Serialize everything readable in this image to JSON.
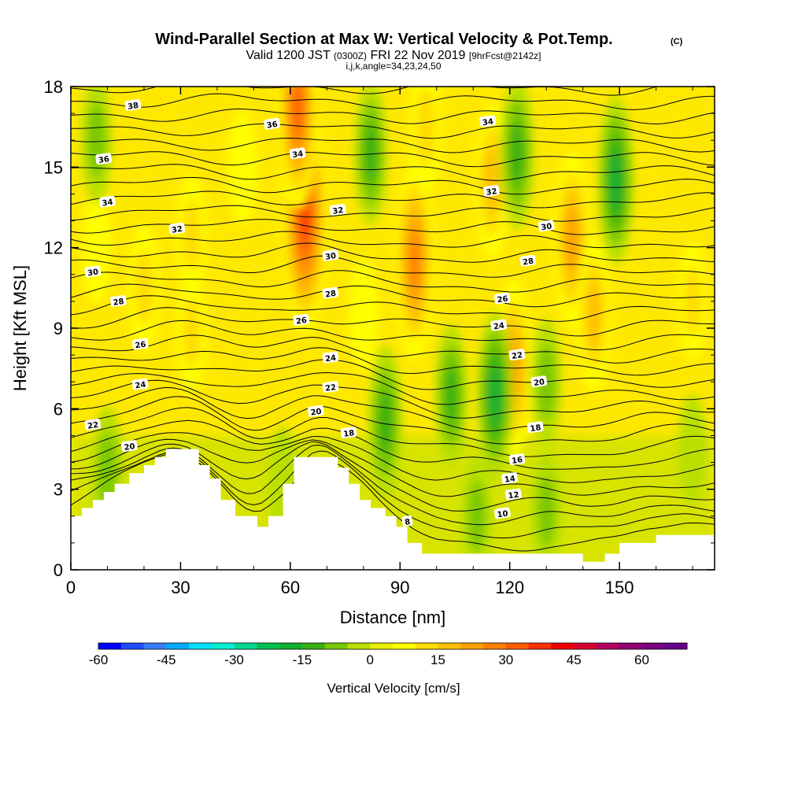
{
  "title": {
    "line1": "Wind-Parallel Section at Max W: Vertical Velocity & Pot.Temp.",
    "copyright": "(C)",
    "line2_a": "Valid 1200 JST",
    "line2_b": "(0300Z)",
    "line2_c": "FRI 22 Nov 2019",
    "line2_d": "[9hrFcst@2142z]",
    "line3": "i,j,k,angle=34,23,24,50"
  },
  "chart_data": {
    "type": "heatmap",
    "xlabel": "Distance [nm]",
    "ylabel": "Height [Kft MSL]",
    "xlim": [
      0,
      176
    ],
    "ylim": [
      0,
      18
    ],
    "x_ticks": [
      0,
      30,
      60,
      90,
      120,
      150
    ],
    "y_ticks": [
      0,
      3,
      6,
      9,
      12,
      15,
      18
    ],
    "field": "Vertical Velocity [cm/s]",
    "contour_field": "Potential Temperature",
    "colorbar": {
      "label": "Vertical Velocity [cm/s]",
      "min": -60,
      "max": 70,
      "step": 5,
      "tick_values": [
        -60,
        -45,
        -30,
        -15,
        0,
        15,
        30,
        45,
        60
      ],
      "tick_labels": [
        "-60",
        "-45",
        "-30",
        "-15",
        "0",
        "15",
        "30",
        "45",
        "60"
      ],
      "colors": [
        "#0000ff",
        "#1e4cff",
        "#3a7eff",
        "#00aaff",
        "#00e0ff",
        "#00f0d0",
        "#00d890",
        "#00c050",
        "#10b030",
        "#38b010",
        "#78c800",
        "#b8e000",
        "#e8f000",
        "#ffff00",
        "#ffdc00",
        "#ffc000",
        "#ffa000",
        "#ff8000",
        "#ff5c00",
        "#ff3000",
        "#f00000",
        "#d80030",
        "#b40060",
        "#900070",
        "#780080",
        "#660088"
      ]
    },
    "terrain": [
      [
        0,
        2.0
      ],
      [
        3,
        2.0
      ],
      [
        3,
        2.3
      ],
      [
        6,
        2.3
      ],
      [
        6,
        2.6
      ],
      [
        9,
        2.6
      ],
      [
        9,
        2.9
      ],
      [
        12,
        2.9
      ],
      [
        12,
        3.2
      ],
      [
        16,
        3.2
      ],
      [
        16,
        3.6
      ],
      [
        20,
        3.6
      ],
      [
        20,
        3.9
      ],
      [
        23,
        3.9
      ],
      [
        23,
        4.2
      ],
      [
        26,
        4.2
      ],
      [
        26,
        4.5
      ],
      [
        35,
        4.5
      ],
      [
        35,
        3.9
      ],
      [
        38,
        3.9
      ],
      [
        38,
        3.4
      ],
      [
        41,
        3.4
      ],
      [
        41,
        2.6
      ],
      [
        45,
        2.6
      ],
      [
        45,
        2.0
      ],
      [
        51,
        2.0
      ],
      [
        51,
        1.6
      ],
      [
        54,
        1.6
      ],
      [
        54,
        2.0
      ],
      [
        58,
        2.0
      ],
      [
        58,
        3.2
      ],
      [
        61,
        3.2
      ],
      [
        61,
        4.2
      ],
      [
        73,
        4.2
      ],
      [
        73,
        3.8
      ],
      [
        76,
        3.8
      ],
      [
        76,
        3.2
      ],
      [
        79,
        3.2
      ],
      [
        79,
        2.6
      ],
      [
        82,
        2.6
      ],
      [
        82,
        2.3
      ],
      [
        86,
        2.3
      ],
      [
        86,
        2.0
      ],
      [
        89,
        2.0
      ],
      [
        89,
        1.6
      ],
      [
        92,
        1.6
      ],
      [
        92,
        1.0
      ],
      [
        96,
        1.0
      ],
      [
        96,
        0.6
      ],
      [
        140,
        0.6
      ],
      [
        140,
        0.3
      ],
      [
        146,
        0.3
      ],
      [
        146,
        0.6
      ],
      [
        150,
        0.6
      ],
      [
        150,
        1.0
      ],
      [
        160,
        1.0
      ],
      [
        160,
        1.3
      ],
      [
        176,
        1.3
      ]
    ],
    "updraft_cells": [
      {
        "x": 64,
        "y": 13.2,
        "value": 37
      },
      {
        "x": 62,
        "y": 17.2,
        "value": 28
      },
      {
        "x": 94,
        "y": 11.5,
        "value": 27
      },
      {
        "x": 97,
        "y": 16.5,
        "value": 12
      },
      {
        "x": 115,
        "y": 14.5,
        "value": 17
      },
      {
        "x": 121,
        "y": 7.5,
        "value": 22
      },
      {
        "x": 137,
        "y": 12.3,
        "value": 22
      },
      {
        "x": 143,
        "y": 9.5,
        "value": 17
      },
      {
        "x": 33,
        "y": 12.5,
        "value": 8
      },
      {
        "x": 20,
        "y": 10.5,
        "value": 10
      },
      {
        "x": 7,
        "y": 12.0,
        "value": 6
      },
      {
        "x": 170,
        "y": 10.0,
        "value": 8
      },
      {
        "x": 47,
        "y": 15.0,
        "value": 7
      },
      {
        "x": 33,
        "y": 8.8,
        "value": 8
      },
      {
        "x": 80,
        "y": 9.5,
        "value": 7
      }
    ],
    "downdraft_cells": [
      {
        "x": 82,
        "y": 15.5,
        "value": -14
      },
      {
        "x": 7,
        "y": 16.0,
        "value": -10
      },
      {
        "x": 122,
        "y": 15.5,
        "value": -16
      },
      {
        "x": 149,
        "y": 14.5,
        "value": -20
      },
      {
        "x": 116,
        "y": 6.5,
        "value": -20
      },
      {
        "x": 104,
        "y": 6.5,
        "value": -14
      },
      {
        "x": 86,
        "y": 5.5,
        "value": -16
      },
      {
        "x": 10,
        "y": 3.6,
        "value": -12
      },
      {
        "x": 130,
        "y": 7.0,
        "value": -10
      },
      {
        "x": 111,
        "y": 2.0,
        "value": -8
      },
      {
        "x": 130,
        "y": 2.2,
        "value": -8
      },
      {
        "x": 170,
        "y": 4.5,
        "value": -6
      },
      {
        "x": 58,
        "y": 3.3,
        "value": -6
      }
    ],
    "contour_labels": [
      {
        "x": 17,
        "y": 17.3,
        "text": "38"
      },
      {
        "x": 55,
        "y": 16.6,
        "text": "36"
      },
      {
        "x": 9,
        "y": 15.3,
        "text": "36"
      },
      {
        "x": 62,
        "y": 15.5,
        "text": "34"
      },
      {
        "x": 114,
        "y": 16.7,
        "text": "34"
      },
      {
        "x": 10,
        "y": 13.7,
        "text": "34"
      },
      {
        "x": 29,
        "y": 12.7,
        "text": "32"
      },
      {
        "x": 73,
        "y": 13.4,
        "text": "32"
      },
      {
        "x": 115,
        "y": 14.1,
        "text": "32"
      },
      {
        "x": 130,
        "y": 12.8,
        "text": "30"
      },
      {
        "x": 6,
        "y": 11.1,
        "text": "30"
      },
      {
        "x": 71,
        "y": 11.7,
        "text": "30"
      },
      {
        "x": 125,
        "y": 11.5,
        "text": "28"
      },
      {
        "x": 13,
        "y": 10.0,
        "text": "28"
      },
      {
        "x": 71,
        "y": 10.3,
        "text": "28"
      },
      {
        "x": 118,
        "y": 10.1,
        "text": "26"
      },
      {
        "x": 19,
        "y": 8.4,
        "text": "26"
      },
      {
        "x": 63,
        "y": 9.3,
        "text": "26"
      },
      {
        "x": 117,
        "y": 9.1,
        "text": "24"
      },
      {
        "x": 19,
        "y": 6.9,
        "text": "24"
      },
      {
        "x": 71,
        "y": 7.9,
        "text": "24"
      },
      {
        "x": 122,
        "y": 8.0,
        "text": "22"
      },
      {
        "x": 6,
        "y": 5.4,
        "text": "22"
      },
      {
        "x": 71,
        "y": 6.8,
        "text": "22"
      },
      {
        "x": 128,
        "y": 7.0,
        "text": "20"
      },
      {
        "x": 16,
        "y": 4.6,
        "text": "20"
      },
      {
        "x": 67,
        "y": 5.9,
        "text": "20"
      },
      {
        "x": 127,
        "y": 5.3,
        "text": "18"
      },
      {
        "x": 76,
        "y": 5.1,
        "text": "18"
      },
      {
        "x": 122,
        "y": 4.1,
        "text": "16"
      },
      {
        "x": 120,
        "y": 3.4,
        "text": "14"
      },
      {
        "x": 121,
        "y": 2.8,
        "text": "12"
      },
      {
        "x": 118,
        "y": 2.1,
        "text": "10"
      },
      {
        "x": 92,
        "y": 1.8,
        "text": "8"
      }
    ]
  }
}
